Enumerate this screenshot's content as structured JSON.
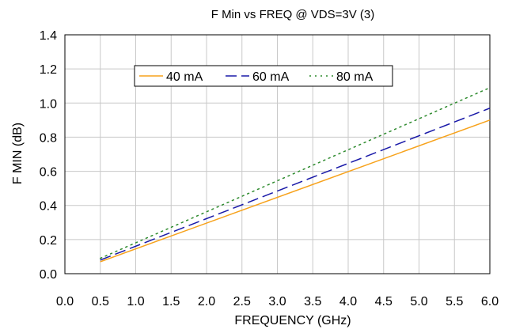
{
  "chart_data": {
    "type": "line",
    "title": "F Min vs FREQ @ VDS=3V (3)",
    "xlabel": "FREQUENCY (GHz)",
    "ylabel": "F MIN (dB)",
    "xlim": [
      0.0,
      6.0
    ],
    "ylim": [
      0.0,
      1.4
    ],
    "x_ticks": [
      "0.0",
      "0.5",
      "1.0",
      "1.5",
      "2.0",
      "2.5",
      "3.0",
      "3.5",
      "4.0",
      "4.5",
      "5.0",
      "5.5",
      "6.0"
    ],
    "y_ticks": [
      "0.0",
      "0.2",
      "0.4",
      "0.6",
      "0.8",
      "1.0",
      "1.2",
      "1.4"
    ],
    "grid": true,
    "legend_position": "top-left",
    "series": [
      {
        "name": "40 mA",
        "color": "#f7a21b",
        "dash": "solid",
        "x": [
          0.5,
          6.0
        ],
        "values": [
          0.07,
          0.9
        ]
      },
      {
        "name": "60 mA",
        "color": "#1a1aa8",
        "dash": "long-dash",
        "x": [
          0.5,
          6.0
        ],
        "values": [
          0.08,
          0.97
        ]
      },
      {
        "name": "80 mA",
        "color": "#2e8b2e",
        "dash": "dotted",
        "x": [
          0.5,
          6.0
        ],
        "values": [
          0.09,
          1.09
        ]
      }
    ]
  }
}
